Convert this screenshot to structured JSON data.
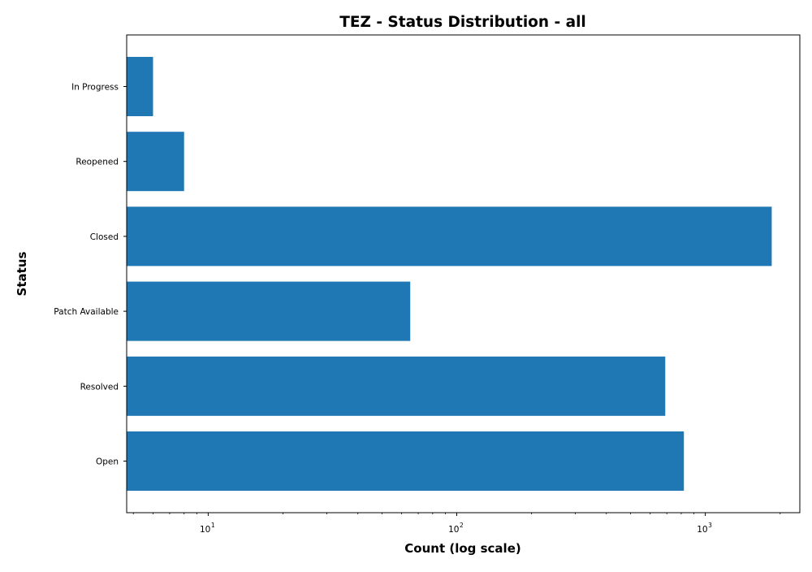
{
  "chart_data": {
    "type": "bar",
    "orientation": "horizontal",
    "title": "TEZ - Status Distribution - all",
    "xlabel": "Count (log scale)",
    "ylabel": "Status",
    "x_scale": "log",
    "xlim": [
      4.7,
      2400
    ],
    "x_ticks": [
      {
        "base": "10",
        "exp": "1",
        "value": 10
      },
      {
        "base": "10",
        "exp": "2",
        "value": 100
      },
      {
        "base": "10",
        "exp": "3",
        "value": 1000
      }
    ],
    "categories": [
      "Open",
      "Resolved",
      "Patch Available",
      "Closed",
      "Reopened",
      "In Progress"
    ],
    "values": [
      820,
      690,
      65,
      1850,
      8,
      6
    ],
    "bar_color": "#1f77b4",
    "grid": false,
    "legend": "none"
  }
}
